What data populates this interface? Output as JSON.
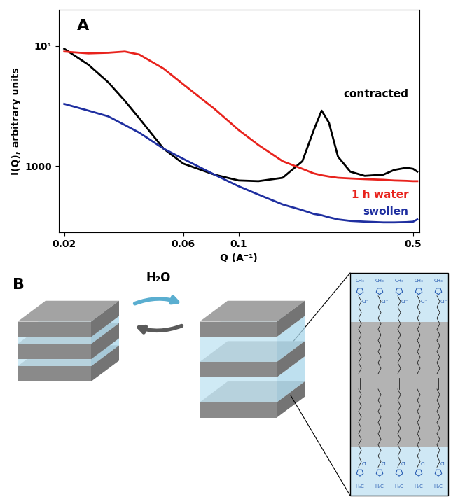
{
  "chart_data": {
    "type": "line",
    "panel_label": "A",
    "log": true,
    "grid": false,
    "x_label": "Q (A⁻¹)",
    "y_label": "I(Q), arbitrary units",
    "x": [
      0.02,
      0.025,
      0.03,
      0.035,
      0.04,
      0.05,
      0.06,
      0.08,
      0.1,
      0.12,
      0.15,
      0.18,
      0.2,
      0.215,
      0.23,
      0.25,
      0.28,
      0.32,
      0.38,
      0.42,
      0.47,
      0.5,
      0.52
    ],
    "series": [
      {
        "name": "contracted",
        "color": "#000000",
        "values": [
          9500,
          7000,
          5000,
          3500,
          2500,
          1400,
          1050,
          850,
          760,
          750,
          800,
          1100,
          2000,
          2900,
          2300,
          1200,
          900,
          830,
          850,
          930,
          970,
          950,
          900
        ]
      },
      {
        "name": "1 h water",
        "color": "#e8231d",
        "values": [
          9000,
          8700,
          8800,
          9000,
          8500,
          6500,
          4800,
          3000,
          2000,
          1500,
          1100,
          950,
          870,
          840,
          820,
          800,
          790,
          780,
          770,
          760,
          755,
          750,
          750
        ]
      },
      {
        "name": "swollen",
        "color": "#1f2fa0",
        "values": [
          3300,
          2900,
          2600,
          2200,
          1900,
          1400,
          1150,
          850,
          680,
          580,
          480,
          430,
          400,
          390,
          375,
          360,
          350,
          345,
          340,
          340,
          342,
          345,
          360
        ]
      }
    ],
    "xlim": [
      0.019,
      0.53
    ],
    "ylim": [
      280,
      20000
    ],
    "xticks": [
      0.02,
      0.06,
      0.1,
      0.5
    ],
    "yticks": [
      1000,
      {
        "value": 10000,
        "label": "10⁴"
      }
    ]
  },
  "diagram": {
    "panel_label": "B",
    "arrow_label": "H₂O",
    "top_groups": [
      "CH₃",
      "Cl⁻"
    ],
    "bottom_groups": [
      "Cl⁻",
      "H₃C"
    ]
  }
}
